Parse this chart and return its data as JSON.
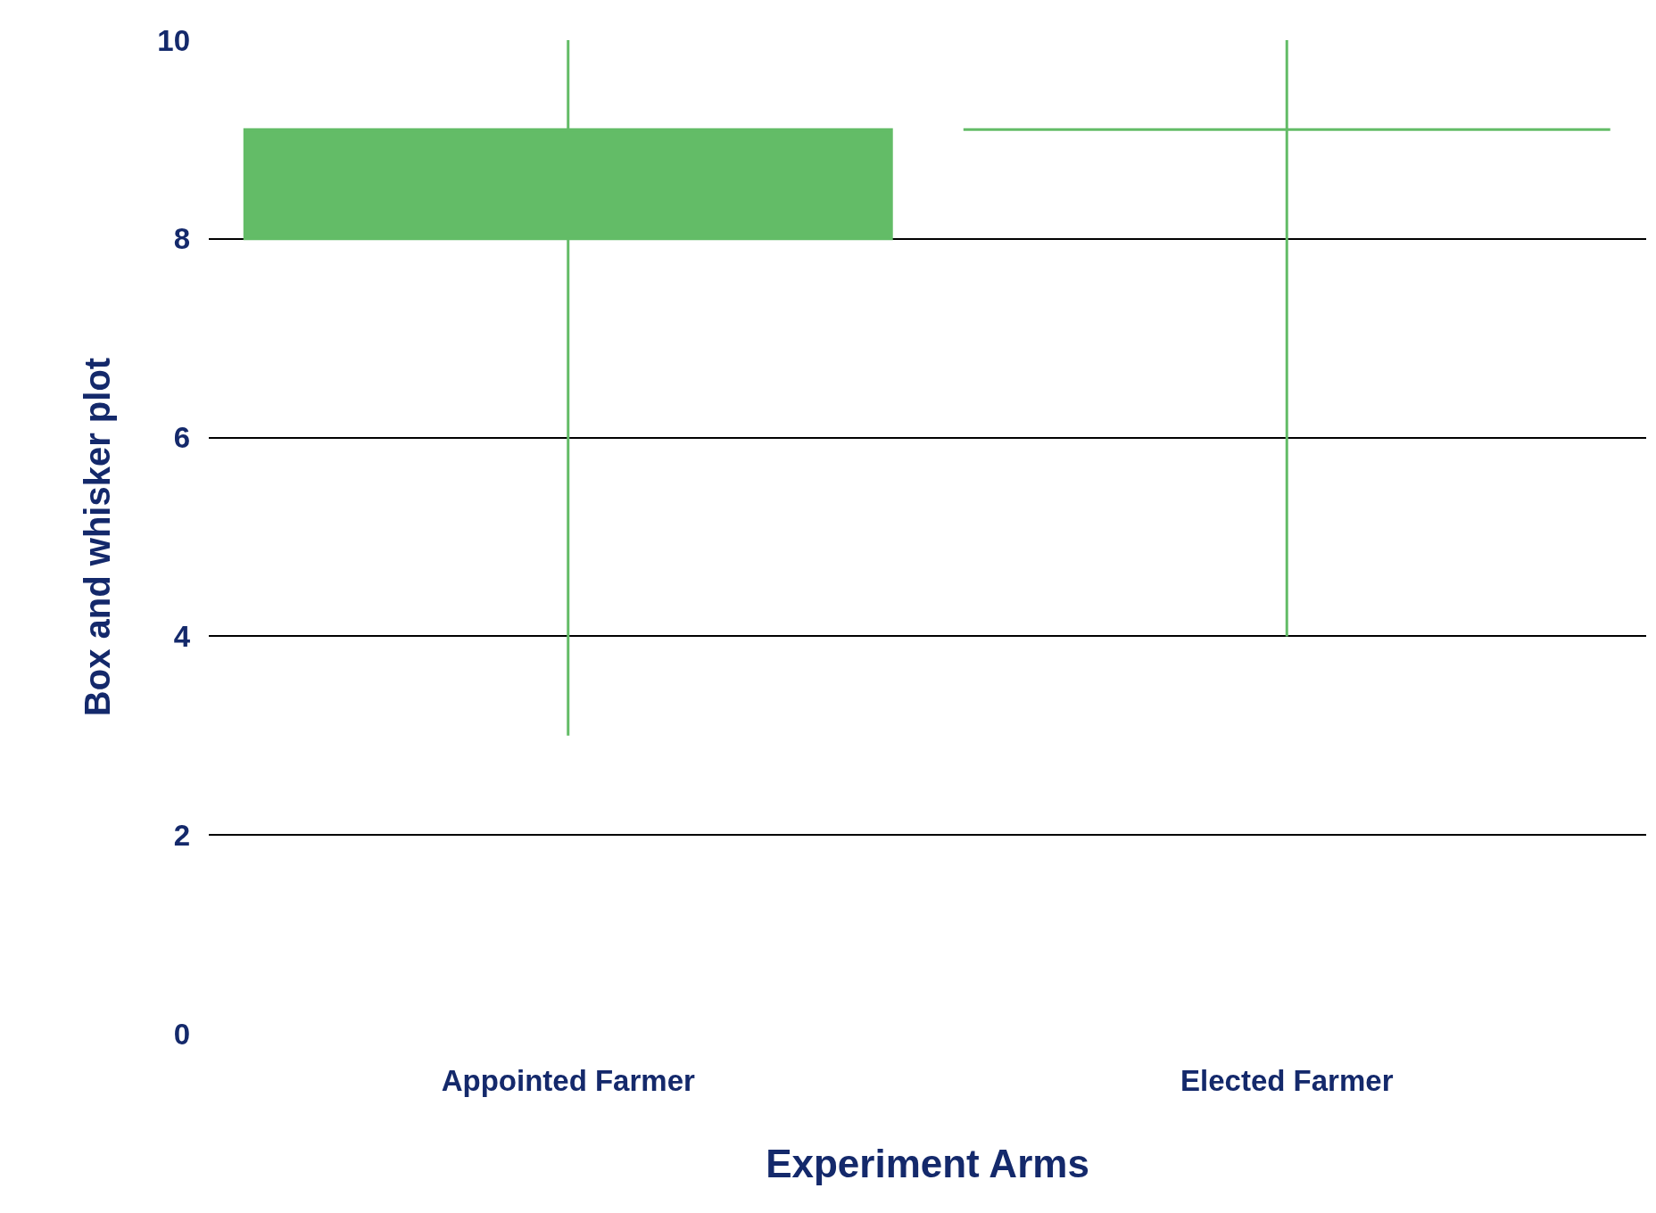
{
  "chart_data": {
    "type": "box",
    "xlabel": "Experiment Arms",
    "ylabel": "Box and whisker plot",
    "categories": [
      "Appointed Farmer",
      "Elected Farmer"
    ],
    "boxes": [
      {
        "low": 3,
        "q1": 8,
        "median": 9.1,
        "q3": 9.1,
        "high": 10
      },
      {
        "low": 4,
        "q1": 9.1,
        "median": 9.1,
        "q3": 9.1,
        "high": 10
      }
    ],
    "color": "#63bc67",
    "ylim": [
      0,
      10
    ],
    "yticks": [
      0,
      2,
      4,
      6,
      8,
      10
    ],
    "grid": "y",
    "legend": false
  }
}
